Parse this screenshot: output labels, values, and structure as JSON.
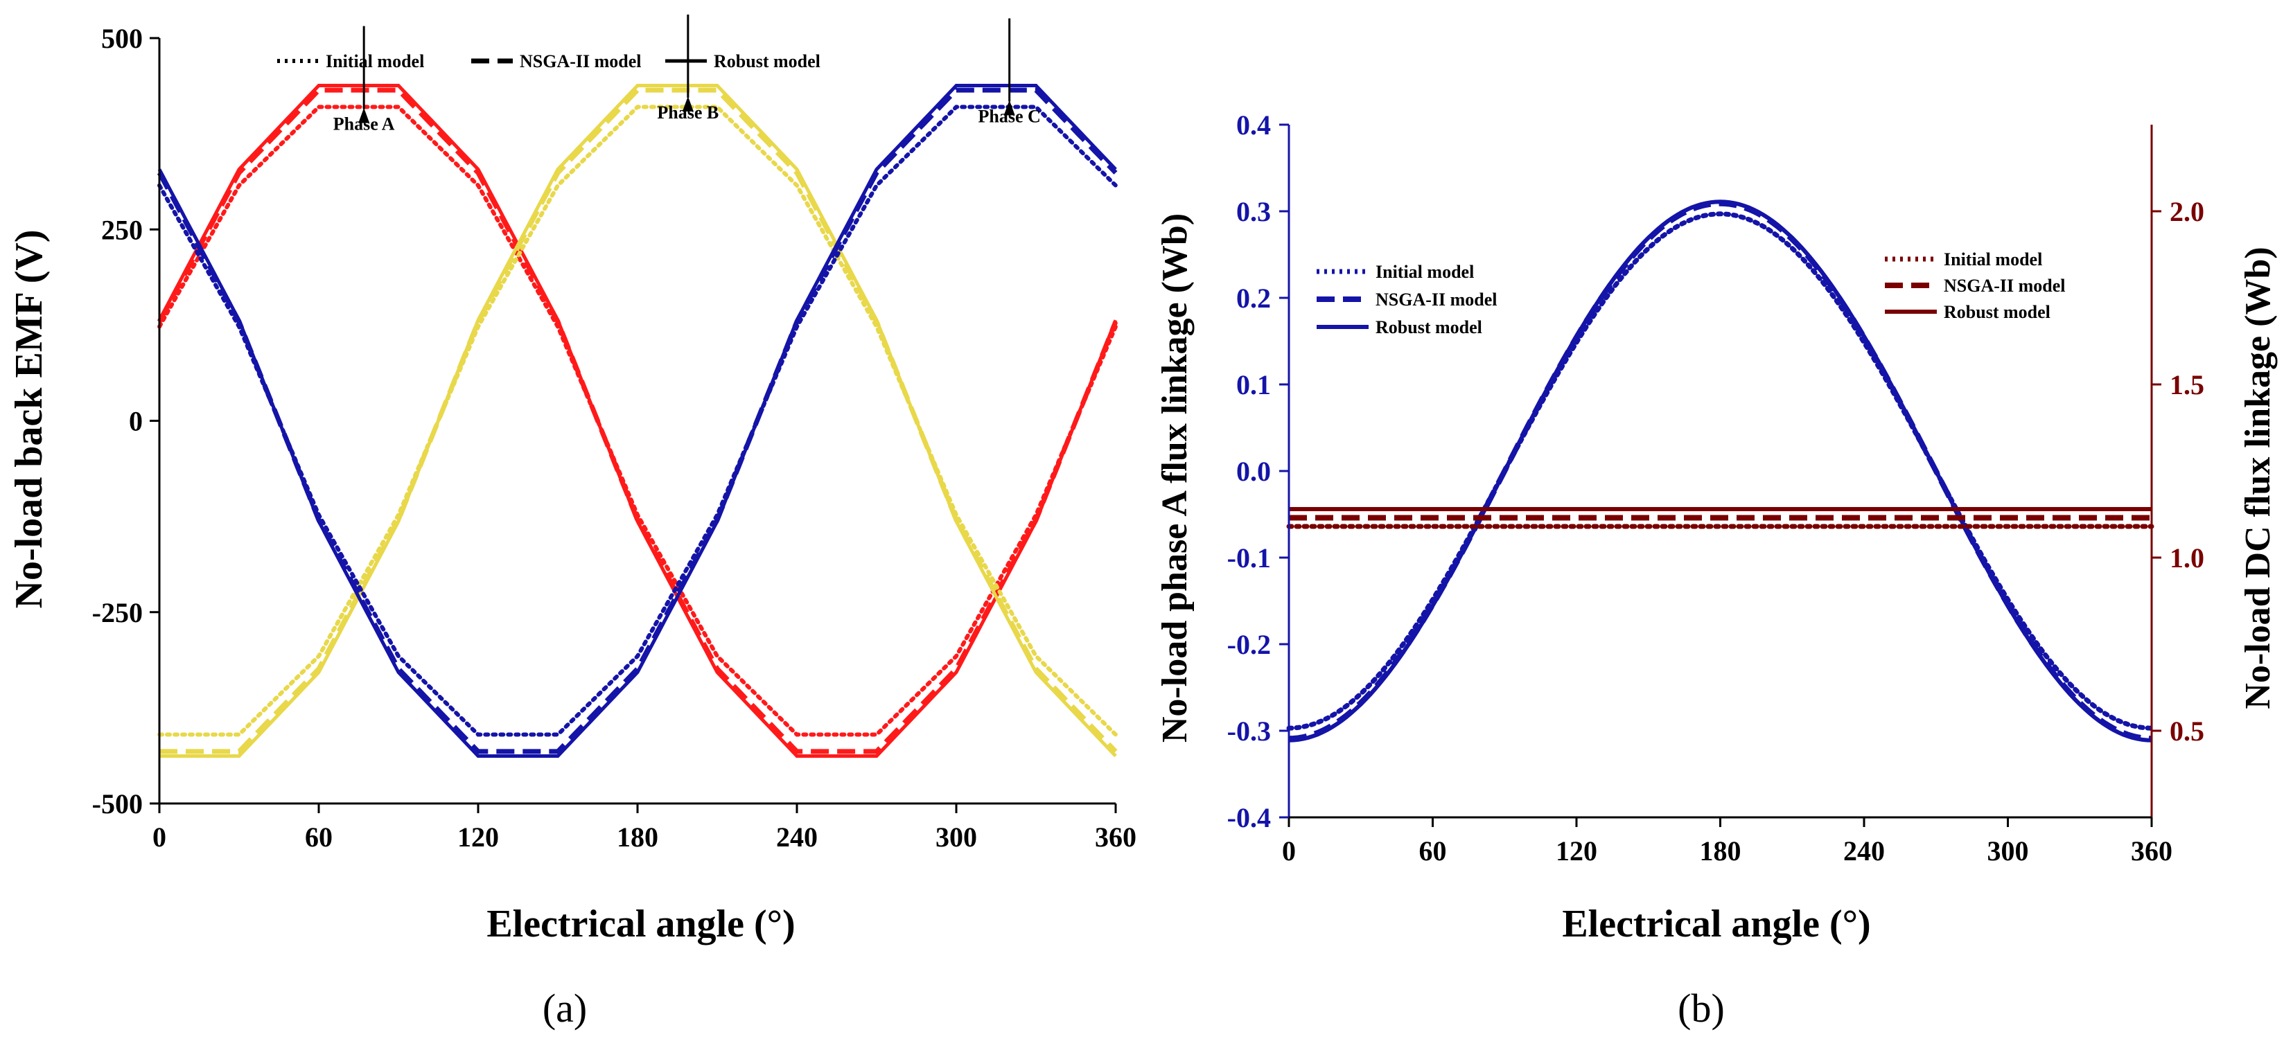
{
  "chart_data": [
    {
      "type": "line",
      "panel_label": "(a)",
      "xlabel": "Electrical angle (°)",
      "ylabel": "No-load back EMF (V)",
      "xlim": [
        0,
        360
      ],
      "ylim": [
        -500,
        500
      ],
      "xticks": [
        "0",
        "60",
        "120",
        "180",
        "240",
        "300",
        "360"
      ],
      "yticks": [
        "-500",
        "-250",
        "0",
        "250",
        "500"
      ],
      "legend": [
        {
          "label": "Initial model",
          "style": "dotted"
        },
        {
          "label": "NSGA-II model",
          "style": "dashed"
        },
        {
          "label": "Robust model",
          "style": "solid"
        }
      ],
      "annotations": [
        {
          "text": "Phase A",
          "x": 77,
          "y": 380
        },
        {
          "text": "Phase B",
          "x": 199,
          "y": 395
        },
        {
          "text": "Phase C",
          "x": 320,
          "y": 390
        }
      ],
      "phases": [
        {
          "name": "Phase A",
          "color": "#ff1a1a",
          "phase_shift_deg": 0
        },
        {
          "name": "Phase B",
          "color": "#e8d84a",
          "phase_shift_deg": 120
        },
        {
          "name": "Phase C",
          "color": "#1414a8",
          "phase_shift_deg": 240
        }
      ],
      "series_shape": {
        "x": [
          0,
          30,
          60,
          90,
          120,
          150,
          180,
          210,
          240,
          270,
          300,
          330,
          360
        ],
        "unit_values": [
          0.3,
          0.75,
          1.0,
          1.0,
          0.75,
          0.3,
          -0.3,
          -0.75,
          -1.0,
          -1.0,
          -0.75,
          -0.3,
          0.3
        ]
      },
      "series": [
        {
          "name": "Initial model",
          "style": "dotted",
          "amplitude": 410
        },
        {
          "name": "NSGA-II model",
          "style": "dashed",
          "amplitude": 432
        },
        {
          "name": "Robust model",
          "style": "solid",
          "amplitude": 438
        }
      ]
    },
    {
      "type": "line",
      "panel_label": "(b)",
      "xlabel": "Electrical angle (°)",
      "ylabel_left": "No-load phase A flux linkage (Wb)",
      "ylabel_right": "No-load DC flux linkage (Wb)",
      "xlim": [
        0,
        360
      ],
      "ylim_left": [
        -0.4,
        0.4
      ],
      "ylim_right": [
        0.25,
        2.25
      ],
      "xticks": [
        "0",
        "60",
        "120",
        "180",
        "240",
        "300",
        "360"
      ],
      "yticks_left": [
        "-0.4",
        "-0.3",
        "-0.2",
        "-0.1",
        "0.0",
        "0.1",
        "0.2",
        "0.3",
        "0.4"
      ],
      "yticks_right": [
        "0.5",
        "1.0",
        "1.5",
        "2.0"
      ],
      "left_color": "#1414a8",
      "right_color": "#7a0000",
      "legend_left": [
        {
          "label": "Initial model",
          "style": "dotted"
        },
        {
          "label": "NSGA-II model",
          "style": "dashed"
        },
        {
          "label": "Robust model",
          "style": "solid"
        }
      ],
      "legend_right": [
        {
          "label": "Initial model",
          "style": "dotted"
        },
        {
          "label": "NSGA-II model",
          "style": "dashed"
        },
        {
          "label": "Robust model",
          "style": "solid"
        }
      ],
      "phase_a_series": [
        {
          "name": "Initial model",
          "style": "dotted",
          "amplitude": 0.297
        },
        {
          "name": "NSGA-II model",
          "style": "dashed",
          "amplitude": 0.309
        },
        {
          "name": "Robust model",
          "style": "solid",
          "amplitude": 0.311
        }
      ],
      "dc_series": [
        {
          "name": "Initial model",
          "style": "dotted",
          "value": 1.09
        },
        {
          "name": "NSGA-II model",
          "style": "dashed",
          "value": 1.115
        },
        {
          "name": "Robust model",
          "style": "solid",
          "value": 1.14
        }
      ]
    }
  ]
}
